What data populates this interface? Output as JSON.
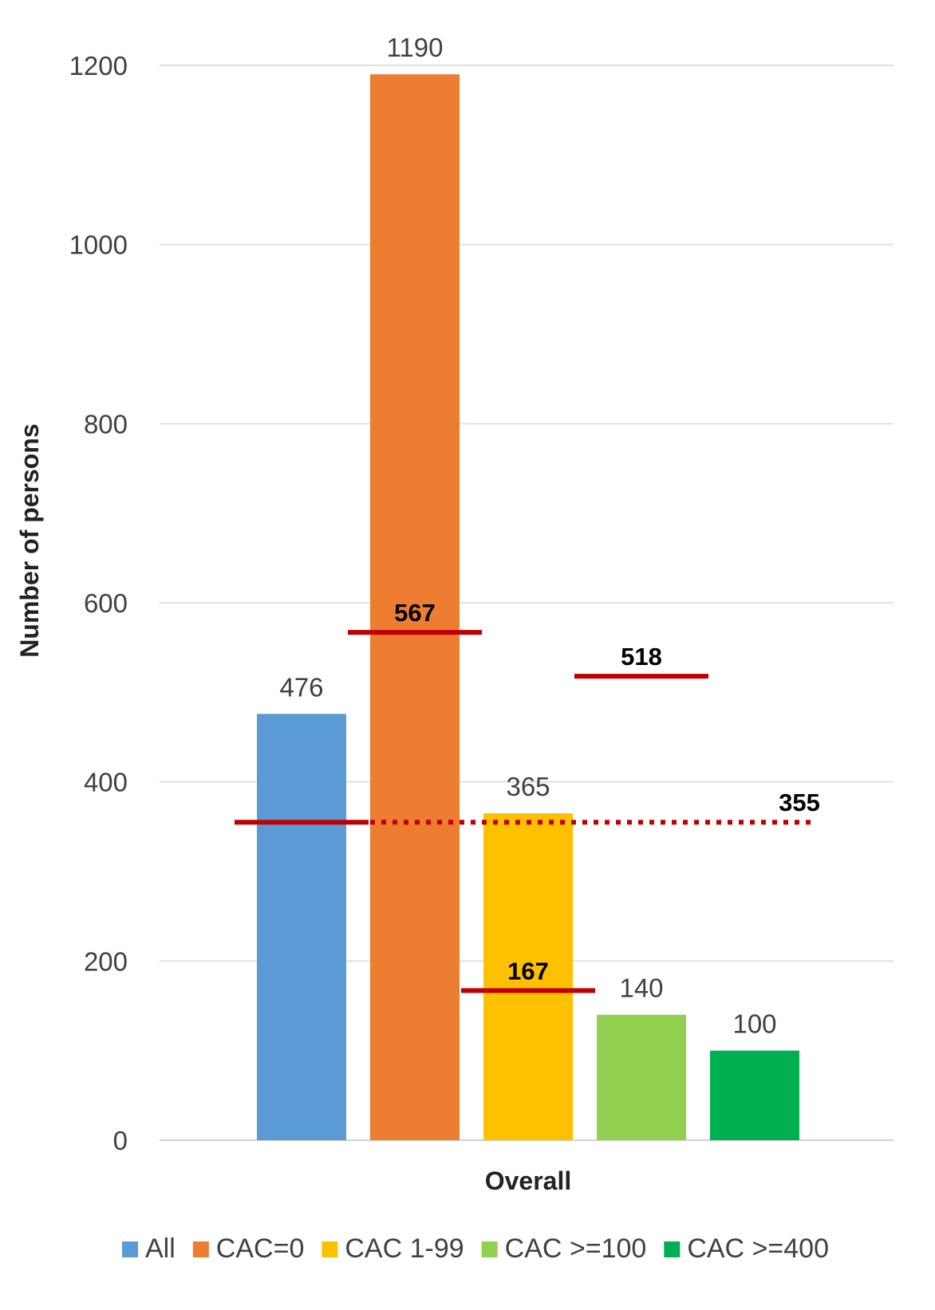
{
  "chart_data": {
    "type": "bar",
    "title": "",
    "xlabel": "Overall",
    "ylabel": "Number of persons",
    "ylim": [
      0,
      1200
    ],
    "yticks": [
      0,
      200,
      400,
      600,
      800,
      1000,
      1200
    ],
    "grid": true,
    "legend_position": "bottom",
    "categories": [
      "Overall"
    ],
    "series": [
      {
        "name": "All",
        "values": [
          476
        ],
        "color": "#5b9bd5"
      },
      {
        "name": "CAC=0",
        "values": [
          1190
        ],
        "color": "#ed7d31"
      },
      {
        "name": "CAC 1-99",
        "values": [
          365
        ],
        "color": "#ffc000"
      },
      {
        "name": "CAC >=100",
        "values": [
          140
        ],
        "color": "#92d050"
      },
      {
        "name": "CAC >=400",
        "values": [
          100
        ],
        "color": "#00b050"
      }
    ],
    "reference_lines": [
      {
        "value": 355,
        "label": "355",
        "style": "solid",
        "span": "All"
      },
      {
        "value": 355,
        "label": "",
        "style": "dotted",
        "span": "CAC=0 to CAC >=400"
      },
      {
        "value": 567,
        "label": "567",
        "style": "solid",
        "span": "CAC=0"
      },
      {
        "value": 167,
        "label": "167",
        "style": "solid",
        "span": "CAC 1-99"
      },
      {
        "value": 518,
        "label": "518",
        "style": "solid",
        "span": "CAC >=100"
      }
    ],
    "reference_color": "#c00000"
  }
}
